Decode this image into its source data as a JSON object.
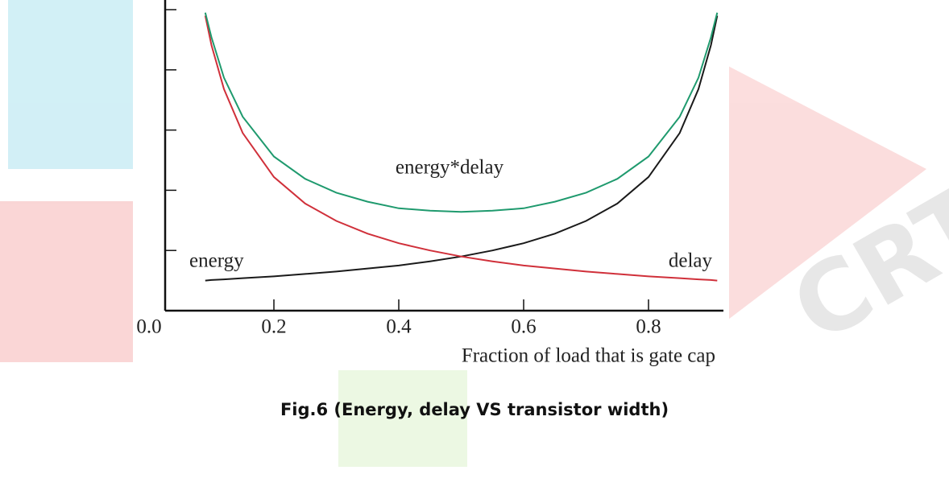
{
  "chart_data": {
    "type": "line",
    "x_label": "Fraction of load that is gate cap",
    "caption": "Fig.6 (Energy, delay VS transistor width)",
    "x": [
      0.09,
      0.1,
      0.12,
      0.15,
      0.2,
      0.25,
      0.3,
      0.35,
      0.4,
      0.45,
      0.5,
      0.55,
      0.6,
      0.65,
      0.7,
      0.75,
      0.8,
      0.85,
      0.88,
      0.9,
      0.91
    ],
    "series": [
      {
        "name": "energy",
        "color": "#1a1a1a",
        "values": [
          0.5,
          0.51,
          0.52,
          0.54,
          0.57,
          0.61,
          0.65,
          0.7,
          0.75,
          0.82,
          0.9,
          1.0,
          1.12,
          1.28,
          1.49,
          1.78,
          2.22,
          2.95,
          3.68,
          4.41,
          4.9
        ]
      },
      {
        "name": "delay",
        "color": "#d0303a",
        "values": [
          4.9,
          4.41,
          3.68,
          2.95,
          2.22,
          1.78,
          1.49,
          1.28,
          1.12,
          1.0,
          0.9,
          0.82,
          0.75,
          0.7,
          0.65,
          0.61,
          0.57,
          0.54,
          0.52,
          0.51,
          0.5
        ]
      },
      {
        "name": "energy*delay",
        "color": "#1f9a6e",
        "values": [
          4.95,
          4.54,
          3.87,
          3.22,
          2.56,
          2.19,
          1.96,
          1.81,
          1.7,
          1.66,
          1.64,
          1.66,
          1.7,
          1.81,
          1.96,
          2.19,
          2.56,
          3.22,
          3.87,
          4.54,
          4.95
        ]
      }
    ],
    "xlim": [
      0,
      0.92
    ],
    "ylim": [
      0,
      5
    ],
    "xticks": [
      {
        "value": 0,
        "label": "0.0"
      },
      0.2,
      0.4,
      0.6,
      0.8
    ],
    "yticks": [
      0,
      1,
      2,
      3,
      4,
      5
    ]
  }
}
